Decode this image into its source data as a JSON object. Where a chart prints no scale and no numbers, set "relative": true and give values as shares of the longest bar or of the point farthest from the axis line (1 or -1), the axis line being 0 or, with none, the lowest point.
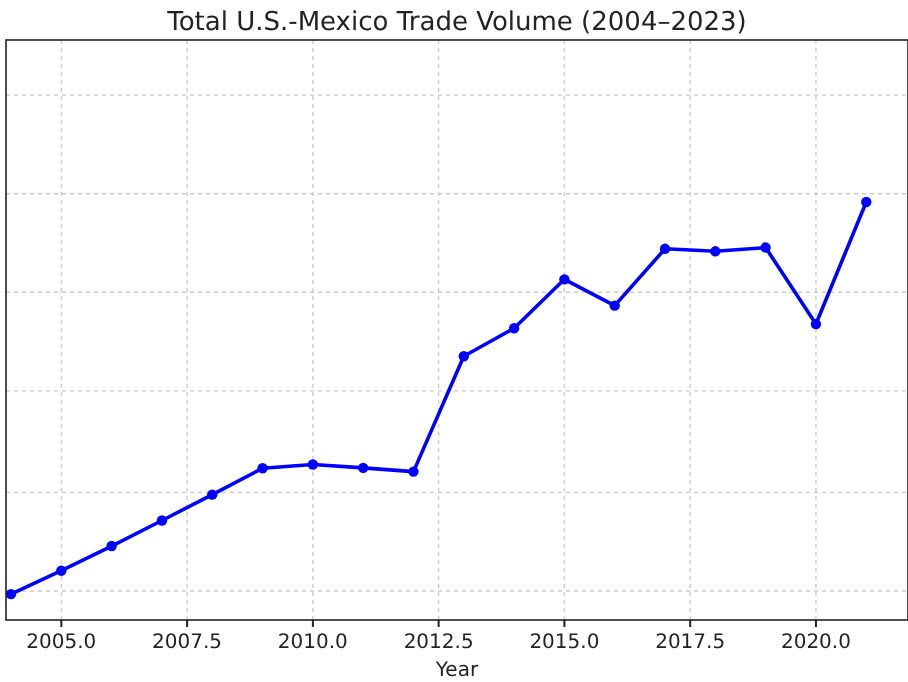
{
  "chart_data": {
    "type": "line",
    "title": "Total U.S.-Mexico Trade Volume (2004–2023)",
    "xlabel": "Year",
    "relative": true,
    "x": [
      2004,
      2005,
      2006,
      2007,
      2008,
      2009,
      2010,
      2011,
      2012,
      2013,
      2014,
      2015,
      2016,
      2017,
      2018,
      2019,
      2020,
      2021
    ],
    "series": [
      {
        "color": "#0000ff",
        "values": [
          0.062,
          0.118,
          0.177,
          0.238,
          0.3,
          0.363,
          0.372,
          0.364,
          0.355,
          0.631,
          0.698,
          0.815,
          0.752,
          0.888,
          0.882,
          0.891,
          0.708,
          1
        ]
      }
    ],
    "xlim": [
      2003.9,
      2021.83
    ],
    "xticks": [
      {
        "value": 2005,
        "label": "2005.0"
      },
      {
        "value": 2007.5,
        "label": "2007.5"
      },
      {
        "value": 2010,
        "label": "2010.0"
      },
      {
        "value": 2012.5,
        "label": "2012.5"
      },
      {
        "value": 2015,
        "label": "2015.0"
      },
      {
        "value": 2017.5,
        "label": "2017.5"
      },
      {
        "value": 2020,
        "label": "2020.0"
      }
    ],
    "grid": true,
    "marker": "circle",
    "line_style": "solid"
  }
}
